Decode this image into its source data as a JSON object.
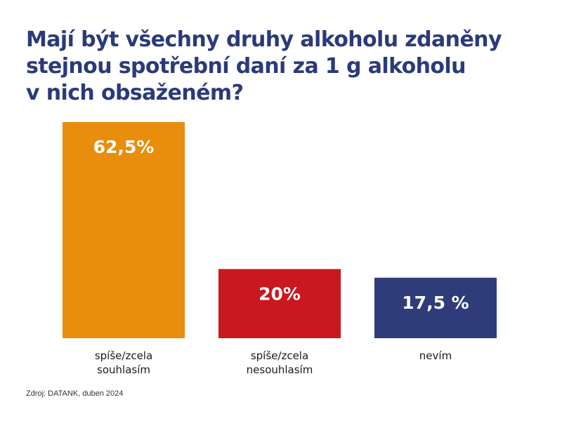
{
  "title_lines": [
    "Mají být všechny druhy alkoholu zdaněny",
    "stejnou spotřební daní za 1 g alkoholu",
    "v nich obsaženém?"
  ],
  "source": "Zdroj: DATANK, duben 2024",
  "chart_data": {
    "type": "bar",
    "title": "Mají být všechny druhy alkoholu zdaněny stejnou spotřební daní za 1 g alkoholu v nich obsaženém?",
    "categories": [
      [
        "spíše/zcela",
        "souhlasím"
      ],
      [
        "spíše/zcela",
        "nesouhlasím"
      ],
      [
        "nevím"
      ]
    ],
    "values": [
      62.5,
      20,
      17.5
    ],
    "value_labels": [
      "62,5%",
      "20%",
      "17,5 %"
    ],
    "colors": [
      "#e98d0c",
      "#c9181e",
      "#2e3c7a"
    ],
    "ylim": [
      0,
      62.5
    ],
    "grid": false,
    "legend": "none"
  }
}
